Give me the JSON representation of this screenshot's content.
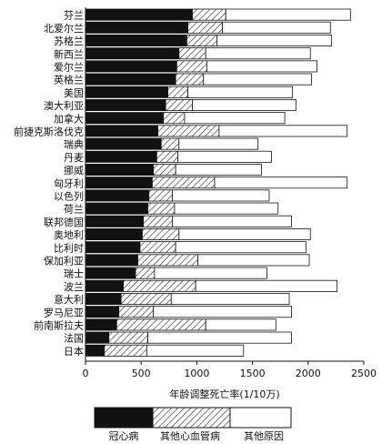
{
  "chart_data": {
    "type": "bar",
    "orientation": "horizontal",
    "stacked": true,
    "categories": [
      "芬兰",
      "北爱尔兰",
      "苏格兰",
      "新西兰",
      "爱尔兰",
      "英格兰",
      "美国",
      "澳大利亚",
      "加拿大",
      "前捷克斯洛伐克",
      "瑞典",
      "丹麦",
      "挪威",
      "匈牙利",
      "以色列",
      "荷兰",
      "联邦德国",
      "奥地利",
      "比利时",
      "保加利亚",
      "瑞士",
      "波兰",
      "意大利",
      "罗马尼亚",
      "前南斯拉夫",
      "法国",
      "日本"
    ],
    "series": [
      {
        "name": "冠心病",
        "values": [
          960,
          920,
          910,
          840,
          820,
          810,
          740,
          720,
          700,
          650,
          680,
          640,
          610,
          600,
          570,
          560,
          520,
          510,
          490,
          470,
          450,
          340,
          320,
          300,
          280,
          210,
          170
        ]
      },
      {
        "name": "其他心血管病",
        "values": [
          300,
          310,
          270,
          240,
          270,
          250,
          180,
          240,
          190,
          550,
          160,
          190,
          200,
          560,
          210,
          240,
          260,
          330,
          320,
          540,
          170,
          650,
          450,
          310,
          800,
          350,
          380
        ]
      },
      {
        "name": "其他原因",
        "values": [
          1120,
          970,
          1030,
          940,
          990,
          970,
          940,
          930,
          900,
          1150,
          710,
          840,
          770,
          1190,
          870,
          930,
          1070,
          1180,
          1170,
          1000,
          1010,
          1270,
          1060,
          1240,
          630,
          1290,
          870
        ]
      }
    ],
    "xlabel": "年龄调整死亡率(1/10万)",
    "xlim": [
      0,
      2500
    ],
    "xticks": [
      0,
      500,
      1000,
      1500,
      2000,
      2500
    ],
    "grid": false,
    "legend_position": "bottom"
  },
  "colors": {
    "coronary": "#111111",
    "other_cv_hatch": "#333333",
    "other_causes": "#ffffff",
    "stroke": "#111111"
  }
}
